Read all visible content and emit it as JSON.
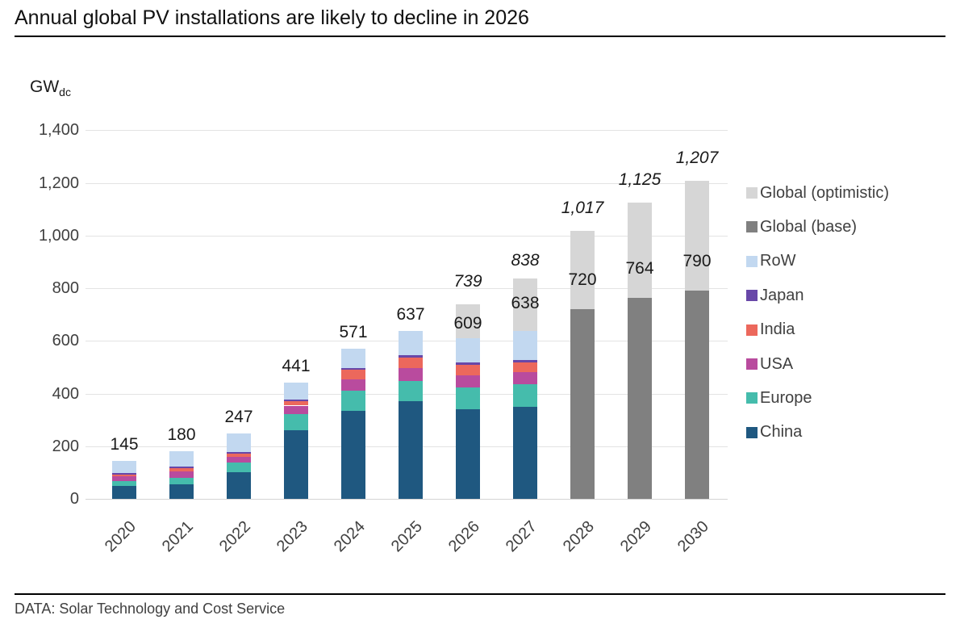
{
  "header": {
    "title": "Annual global PV installations are likely to decline in 2026"
  },
  "axis": {
    "unit_main": "GW",
    "unit_sub": "dc",
    "y_ticks": [
      "0",
      "200",
      "400",
      "600",
      "800",
      "1,000",
      "1,200",
      "1,400"
    ],
    "x_ticks": [
      "2020",
      "2021",
      "2022",
      "2023",
      "2024",
      "2025",
      "2026",
      "2027",
      "2028",
      "2029",
      "2030"
    ]
  },
  "colors": {
    "China": "#1F5880",
    "Europe": "#45BCAC",
    "USA": "#B94B9E",
    "India": "#EC685C",
    "Japan": "#6847A8",
    "RoW": "#C2D8F0",
    "Global (base)": "#808080",
    "Global (optimistic)": "#D6D6D6"
  },
  "legend": {
    "items": [
      {
        "label": "Global (optimistic)",
        "series": "Global (optimistic)"
      },
      {
        "label": "Global (base)",
        "series": "Global (base)"
      },
      {
        "label": "RoW",
        "series": "RoW"
      },
      {
        "label": "Japan",
        "series": "Japan"
      },
      {
        "label": "India",
        "series": "India"
      },
      {
        "label": "USA",
        "series": "USA"
      },
      {
        "label": "Europe",
        "series": "Europe"
      },
      {
        "label": "China",
        "series": "China"
      }
    ]
  },
  "footer": {
    "source": "DATA: Solar Technology and Cost Service"
  },
  "chart_data": {
    "type": "bar",
    "subtype": "stacked",
    "title": "Annual global PV installations are likely to decline in 2026",
    "xlabel": "",
    "ylabel": "GW dc",
    "ylim": [
      0,
      1400
    ],
    "y_step": 200,
    "grid": true,
    "legend_position": "right",
    "categories": [
      "2020",
      "2021",
      "2022",
      "2023",
      "2024",
      "2025",
      "2026",
      "2027",
      "2028",
      "2029",
      "2030"
    ],
    "stack_order_bottom_to_top": [
      "China",
      "Europe",
      "USA",
      "India",
      "Japan",
      "RoW"
    ],
    "series": [
      {
        "name": "China",
        "values": [
          48,
          55,
          100,
          260,
          335,
          370,
          340,
          348,
          null,
          null,
          null
        ]
      },
      {
        "name": "Europe",
        "values": [
          20,
          26,
          39,
          61,
          75,
          76,
          82,
          86,
          null,
          null,
          null
        ]
      },
      {
        "name": "USA",
        "values": [
          19,
          24,
          21,
          33,
          45,
          50,
          48,
          46,
          null,
          null,
          null
        ]
      },
      {
        "name": "India",
        "values": [
          4,
          12,
          13,
          17,
          35,
          41,
          40,
          38,
          null,
          null,
          null
        ]
      },
      {
        "name": "Japan",
        "values": [
          8,
          6,
          6,
          6,
          6,
          8,
          8,
          8,
          null,
          null,
          null
        ]
      },
      {
        "name": "RoW",
        "values": [
          46,
          57,
          68,
          64,
          75,
          92,
          91,
          112,
          null,
          null,
          null
        ]
      },
      {
        "name": "Global (base)",
        "values": [
          null,
          null,
          null,
          null,
          null,
          null,
          null,
          null,
          720,
          764,
          790
        ]
      },
      {
        "name": "Global (optimistic)",
        "values": [
          null,
          null,
          null,
          null,
          null,
          null,
          739,
          838,
          1017,
          1125,
          1207
        ]
      }
    ],
    "base_totals": [
      145,
      180,
      247,
      441,
      571,
      637,
      609,
      638,
      720,
      764,
      790
    ],
    "optimistic_totals": [
      null,
      null,
      null,
      null,
      null,
      null,
      739,
      838,
      1017,
      1125,
      1207
    ],
    "base_labels": [
      "145",
      "180",
      "247",
      "441",
      "571",
      "637",
      "609",
      "638",
      "720",
      "764",
      "790"
    ],
    "optimistic_labels": [
      null,
      null,
      null,
      null,
      null,
      null,
      "739",
      "838",
      "1,017",
      "1,125",
      "1,207"
    ]
  }
}
